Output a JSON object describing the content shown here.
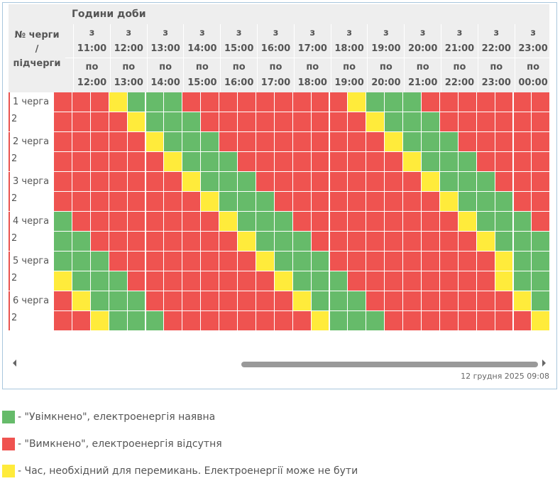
{
  "header": {
    "title": "Години доби",
    "queue_col": [
      "№ черги",
      "/",
      "підчерги"
    ]
  },
  "hours_from": [
    "з",
    "з",
    "з",
    "з",
    "з",
    "з",
    "з",
    "з",
    "з",
    "з",
    "з",
    "з",
    "з"
  ],
  "hours_from_time": [
    "11:00",
    "12:00",
    "13:00",
    "14:00",
    "15:00",
    "16:00",
    "17:00",
    "18:00",
    "19:00",
    "20:00",
    "21:00",
    "22:00",
    "23:00"
  ],
  "hours_to": [
    "по",
    "по",
    "по",
    "по",
    "по",
    "по",
    "по",
    "по",
    "по",
    "по",
    "по",
    "по",
    "по"
  ],
  "hours_to_time": [
    "12:00",
    "13:00",
    "14:00",
    "15:00",
    "16:00",
    "17:00",
    "18:00",
    "19:00",
    "20:00",
    "21:00",
    "22:00",
    "23:00",
    "00:00"
  ],
  "rows": [
    {
      "label": "1 черга",
      "sub": "2"
    },
    {
      "label": "2 черга",
      "sub": "2"
    },
    {
      "label": "3 черга",
      "sub": "2"
    },
    {
      "label": "4 черга",
      "sub": "2"
    },
    {
      "label": "5 черга",
      "sub": "2"
    },
    {
      "label": "6 черга",
      "sub": "2"
    }
  ],
  "grid": [
    "RRRYGGGRRRRRRRRRYGGGRRRRRRRY",
    "RRRRYGGGRRRRRRRRRYGGGRRRRRRR",
    "RRRRRYGGGRRRRRRRRRYGGGRRRRRR",
    "RRRRRRYGGGRRRRRRRRRYGGGRRRRR",
    "RRRRRRRYGGGRRRRRRRRRYGGGRRRR",
    "RRRRRRRRYGGGRRRRRRRRRYGGGRRR",
    "GRRRRRRRRYGGGRRRRRRRRRYGGGRR",
    "GGRRRRRRRRYGGGRRRRRRRRRYGGGR",
    "GGGRRRRRRRRYGGGRRRRRRRRRYGGG",
    "YGGGRRRRRRRRYGGGRRRRRRRRYGGG",
    "RYGGGRRRRRRRRYGGGRRRRRRRRYGG",
    "RRYGGGRRRRRRRRYGGGRRRRRRRRYG"
  ],
  "colors": {
    "G": "#66bb6a",
    "R": "#ef5350",
    "Y": "#ffeb3b"
  },
  "timestamp": "12 грудня 2025 09:08",
  "legend": [
    {
      "color": "#66bb6a",
      "text": "- \"Увімкнено\", електроенергія наявна"
    },
    {
      "color": "#ef5350",
      "text": "- \"Вимкнено\", електроенергія відсутня"
    },
    {
      "color": "#ffeb3b",
      "text": "- Час, необхідний для перемикань. Електроенергії може не бути"
    }
  ]
}
